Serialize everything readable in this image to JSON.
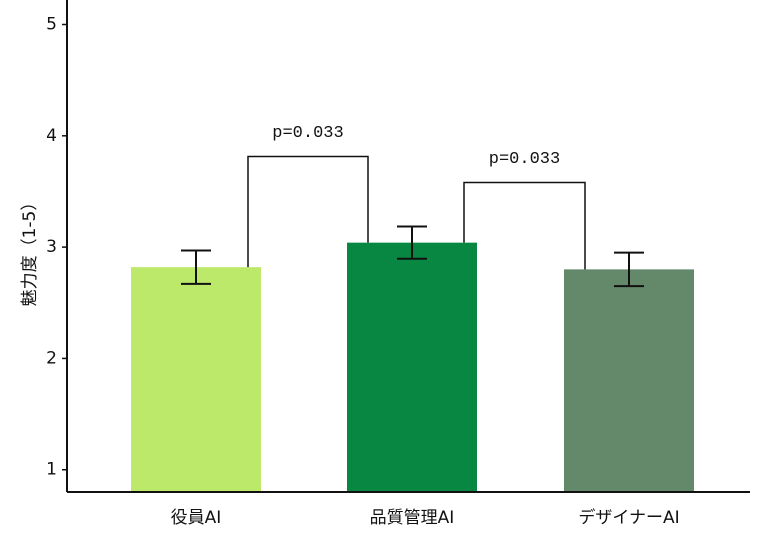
{
  "chart_data": {
    "type": "bar",
    "y_label": "魅力度（1-5）",
    "categories": [
      "役員AI",
      "品質管理AI",
      "デザイナーAI"
    ],
    "values": [
      2.82,
      3.04,
      2.8
    ],
    "errors": [
      0.15,
      0.145,
      0.15
    ],
    "colors": [
      "#bde96a",
      "#088742",
      "#63896a"
    ],
    "ylim": [
      0.8,
      5.22
    ],
    "yticks": [
      1,
      2,
      3,
      4,
      5
    ],
    "grid": false,
    "annotations": [
      {
        "text": "p=0.033",
        "between": [
          0,
          1
        ]
      },
      {
        "text": "p=0.033",
        "between": [
          1,
          2
        ]
      }
    ]
  }
}
